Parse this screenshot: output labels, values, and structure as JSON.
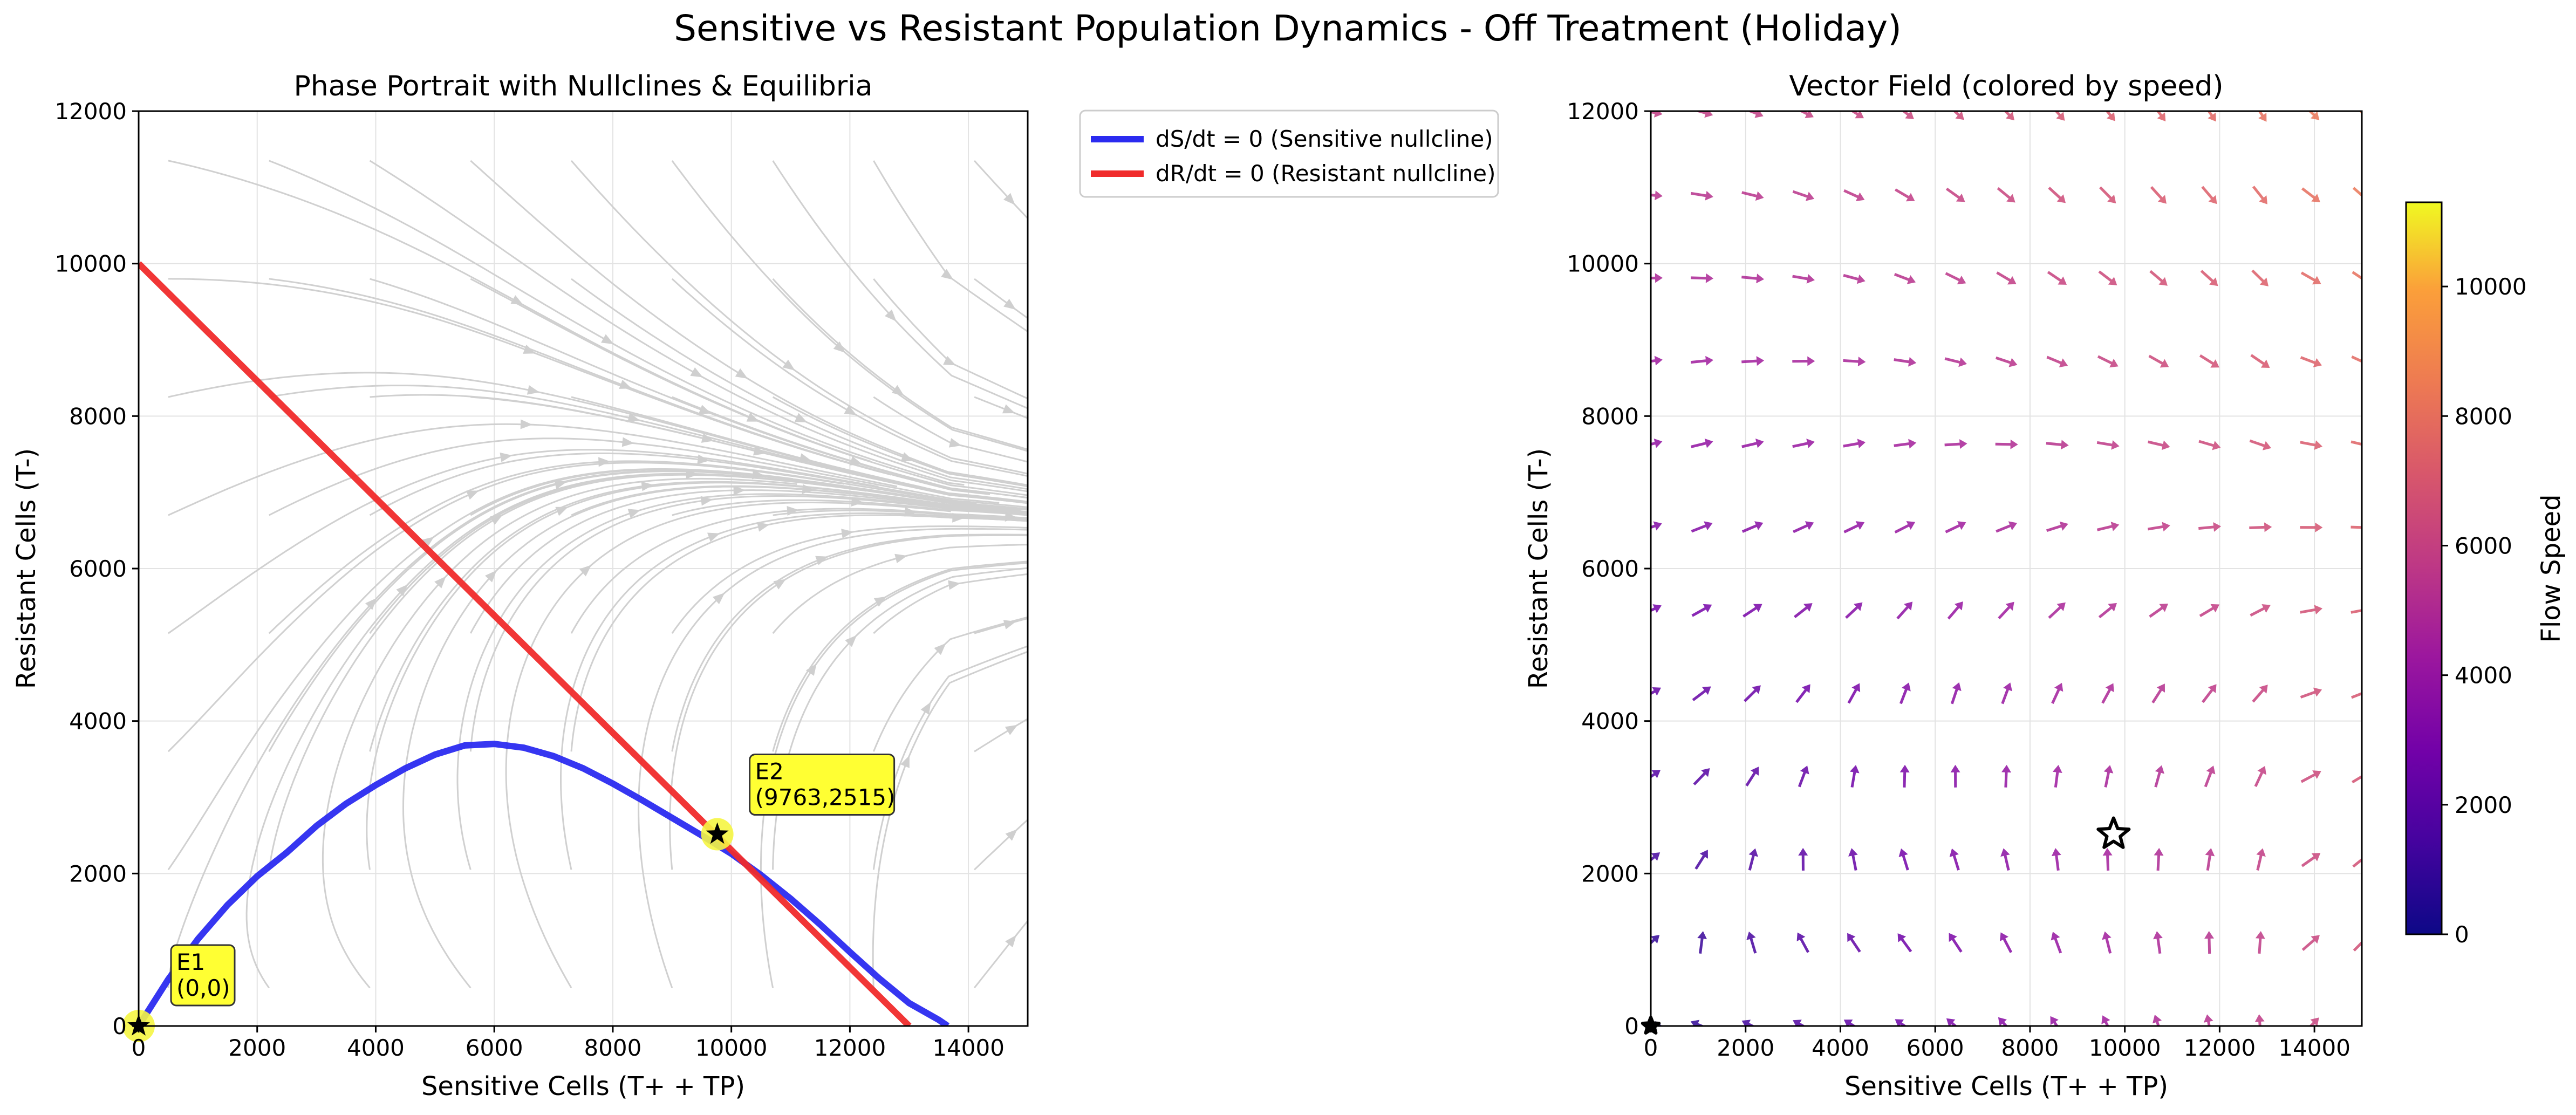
{
  "figure_title": "Sensitive vs Resistant Population Dynamics - Off Treatment (Holiday)",
  "chart_data": [
    {
      "type": "line",
      "title": "Phase Portrait with Nullclines & Equilibria",
      "xlabel": "Sensitive Cells (T+ + TP)",
      "ylabel": "Resistant Cells (T-)",
      "xlim": [
        0,
        15000
      ],
      "ylim": [
        0,
        12000
      ],
      "xticks": [
        "0",
        "2000",
        "4000",
        "6000",
        "8000",
        "10000",
        "12000",
        "14000"
      ],
      "yticks": [
        "0",
        "2000",
        "4000",
        "6000",
        "8000",
        "10000",
        "12000"
      ],
      "grid": true,
      "legend_position": "outside-top-right",
      "series": [
        {
          "name": "dS/dt = 0 (Sensitive nullcline)",
          "color": "#2b2bf0",
          "x": [
            0,
            500,
            1000,
            1500,
            2000,
            2500,
            3000,
            3500,
            4000,
            4500,
            5000,
            5500,
            6000,
            6500,
            7000,
            7500,
            8000,
            8500,
            9000,
            9500,
            10000,
            10500,
            11000,
            11500,
            12000,
            12500,
            13000,
            13500,
            13650
          ],
          "y": [
            0,
            612,
            1140,
            1588,
            1964,
            2276,
            2624,
            2916,
            3160,
            3380,
            3560,
            3680,
            3700,
            3650,
            3540,
            3380,
            3180,
            2960,
            2730,
            2500,
            2260,
            1980,
            1670,
            1330,
            970,
            620,
            300,
            80,
            0
          ]
        },
        {
          "name": "dR/dt = 0 (Resistant nullcline)",
          "color": "#f02b2b",
          "x": [
            0,
            13000
          ],
          "y": [
            10000,
            0
          ]
        }
      ],
      "equilibria": [
        {
          "label": "E1",
          "coords": "(0,0)",
          "x": 0,
          "y": 0
        },
        {
          "label": "E2",
          "coords": "(9763,2515)",
          "x": 9763,
          "y": 2515
        }
      ]
    },
    {
      "type": "quiver",
      "title": "Vector Field (colored by speed)",
      "xlabel": "Sensitive Cells (T+ + TP)",
      "ylabel": "Resistant Cells (T-)",
      "xlim": [
        0,
        15000
      ],
      "ylim": [
        0,
        12000
      ],
      "xticks": [
        "0",
        "2000",
        "4000",
        "6000",
        "8000",
        "10000",
        "12000",
        "14000"
      ],
      "yticks": [
        "0",
        "2000",
        "4000",
        "6000",
        "8000",
        "10000",
        "12000"
      ],
      "grid": true,
      "colormap": "plasma",
      "colorbar": {
        "label": "Flow Speed",
        "range": [
          0,
          11300
        ],
        "ticks": [
          "0",
          "2000",
          "4000",
          "6000",
          "8000",
          "10000"
        ]
      },
      "equilibrium_markers": [
        {
          "x": 0,
          "y": 0
        },
        {
          "x": 9763,
          "y": 2515
        }
      ]
    }
  ]
}
